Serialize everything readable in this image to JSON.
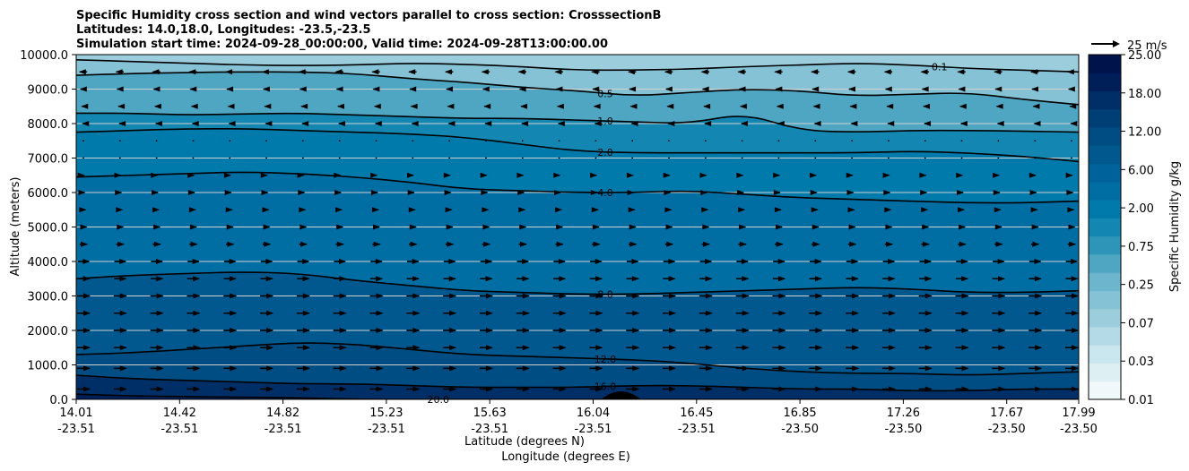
{
  "chart_data": {
    "type": "heatmap",
    "title_lines": [
      "Specific Humidity cross section and wind vectors parallel to cross section: CrosssectionB",
      "Latitudes: 14.0,18.0, Longitudes: -23.5,-23.5",
      "Simulation start time: 2024-09-28_00:00:00, Valid time: 2024-09-28T13:00:00.00"
    ],
    "xlabel_lines": [
      "Latitude (degrees N)",
      "Longitude (degrees E)"
    ],
    "ylabel": "Altitude (meters)",
    "x_ticks": [
      {
        "lat": "14.01",
        "lon": "-23.51"
      },
      {
        "lat": "14.42",
        "lon": "-23.51"
      },
      {
        "lat": "14.82",
        "lon": "-23.51"
      },
      {
        "lat": "15.23",
        "lon": "-23.51"
      },
      {
        "lat": "15.63",
        "lon": "-23.51"
      },
      {
        "lat": "16.04",
        "lon": "-23.51"
      },
      {
        "lat": "16.45",
        "lon": "-23.51"
      },
      {
        "lat": "16.85",
        "lon": "-23.50"
      },
      {
        "lat": "17.26",
        "lon": "-23.50"
      },
      {
        "lat": "17.67",
        "lon": "-23.50"
      },
      {
        "lat": "17.99",
        "lon": "-23.50"
      }
    ],
    "y_ticks": [
      "0.0",
      "1000.0",
      "2000.0",
      "3000.0",
      "4000.0",
      "5000.0",
      "6000.0",
      "7000.0",
      "8000.0",
      "9000.0",
      "10000.0"
    ],
    "ylim": [
      0,
      10000
    ],
    "grid": "horizontal",
    "colorbar": {
      "label": "Specific Humidity g/kg",
      "tick_labels": [
        "0.01",
        "0.03",
        "0.07",
        "0.25",
        "0.75",
        "2.00",
        "6.00",
        "12.00",
        "18.00",
        "25.00"
      ],
      "levels": [
        "0.01",
        "0.02",
        "0.03",
        "0.05",
        "0.07",
        "0.1",
        "0.25",
        "0.5",
        "0.75",
        "1.0",
        "2.0",
        "4.0",
        "6.0",
        "8.0",
        "12.0",
        "16.0",
        "18.0",
        "20.0",
        "25.0"
      ],
      "colors": [
        "#f1f8fa",
        "#deeff4",
        "#cae6ee",
        "#b3dae6",
        "#9ccddd",
        "#86c2d6",
        "#6cb5cd",
        "#4fa6c3",
        "#2e95b9",
        "#1387b1",
        "#0079ab",
        "#006da3",
        "#00629a",
        "#00588f",
        "#004d84",
        "#003f76",
        "#002f67",
        "#001f58",
        "#00144c"
      ],
      "position": "right"
    },
    "quiver_key": {
      "label": "25 m/s",
      "position": "top-right"
    },
    "contours": [
      {
        "level": "0.1",
        "label": "0.1",
        "alt": [
          9850,
          9800,
          9750,
          9700,
          9680,
          9700,
          9750,
          9720,
          9650,
          9550,
          9550,
          9580,
          9650,
          9700,
          9750,
          9700,
          9600,
          9550,
          9500
        ]
      },
      {
        "level": "0.5",
        "label": "0.5",
        "alt": [
          9400,
          9450,
          9480,
          9500,
          9500,
          9450,
          9300,
          9200,
          9050,
          8950,
          8800,
          8900,
          9000,
          8950,
          8800,
          8850,
          8900,
          8700,
          8550
        ]
      },
      {
        "level": "1.0",
        "label": "1.0",
        "alt": [
          8300,
          8300,
          8250,
          8280,
          8300,
          8250,
          8200,
          8150,
          8150,
          8100,
          8050,
          8000,
          8300,
          7800,
          7750,
          7800,
          7800,
          7780,
          7750
        ]
      },
      {
        "level": "2.0",
        "label": "2.0",
        "alt": [
          7750,
          7800,
          7850,
          7850,
          7800,
          7750,
          7700,
          7600,
          7400,
          7200,
          7150,
          7150,
          7150,
          7150,
          7150,
          7200,
          7150,
          7050,
          6900
        ]
      },
      {
        "level": "4.0",
        "label": "4.0",
        "alt": [
          6450,
          6500,
          6550,
          6600,
          6550,
          6450,
          6300,
          6100,
          6050,
          6000,
          6000,
          6050,
          5950,
          5850,
          5800,
          5750,
          5700,
          5700,
          5750
        ]
      },
      {
        "level": "8.0",
        "label": "8.0",
        "alt": [
          3500,
          3600,
          3650,
          3700,
          3650,
          3450,
          3300,
          3150,
          3100,
          3050,
          3050,
          3100,
          3150,
          3200,
          3250,
          3200,
          3100,
          3100,
          3150
        ]
      },
      {
        "level": "12.0",
        "label": "12.0",
        "alt": [
          1300,
          1350,
          1450,
          1550,
          1650,
          1600,
          1450,
          1300,
          1250,
          1200,
          1150,
          1050,
          900,
          800,
          750,
          750,
          700,
          750,
          800
        ]
      },
      {
        "level": "16.0",
        "label": "16.0",
        "alt": [
          700,
          600,
          550,
          500,
          450,
          450,
          400,
          350,
          350,
          350,
          400,
          400,
          350,
          300,
          300,
          250,
          250,
          300,
          300
        ]
      },
      {
        "level": "20.0",
        "label": "20.0",
        "alt": [
          150,
          100,
          80,
          60,
          50,
          0,
          0,
          0,
          0,
          0,
          0,
          0,
          0,
          0,
          0,
          0,
          0,
          0,
          0
        ]
      }
    ],
    "terrain": {
      "x_index_range": [
        6.5,
        7.8
      ],
      "peak_alt": 200
    },
    "wind_u_profile": [
      {
        "alt": 300,
        "u": 1.0
      },
      {
        "alt": 900,
        "u": 1.0
      },
      {
        "alt": 1500,
        "u": 1.0
      },
      {
        "alt": 2000,
        "u": 1.0
      },
      {
        "alt": 2500,
        "u": 1.0
      },
      {
        "alt": 3000,
        "u": 1.0
      },
      {
        "alt": 3500,
        "u": 0.95
      },
      {
        "alt": 4000,
        "u": 0.9
      },
      {
        "alt": 4500,
        "u": 0.6
      },
      {
        "alt": 5000,
        "u": 0.5
      },
      {
        "alt": 5500,
        "u": 0.35
      },
      {
        "alt": 6000,
        "u": 0.2
      },
      {
        "alt": 6500,
        "u": 0.1
      },
      {
        "alt": 7000,
        "u": 0.0
      },
      {
        "alt": 7500,
        "u": 0.0
      },
      {
        "alt": 8000,
        "u": -0.1
      },
      {
        "alt": 8500,
        "u": -0.25
      },
      {
        "alt": 9000,
        "u": -0.45
      },
      {
        "alt": 9500,
        "u": -0.6
      }
    ]
  }
}
